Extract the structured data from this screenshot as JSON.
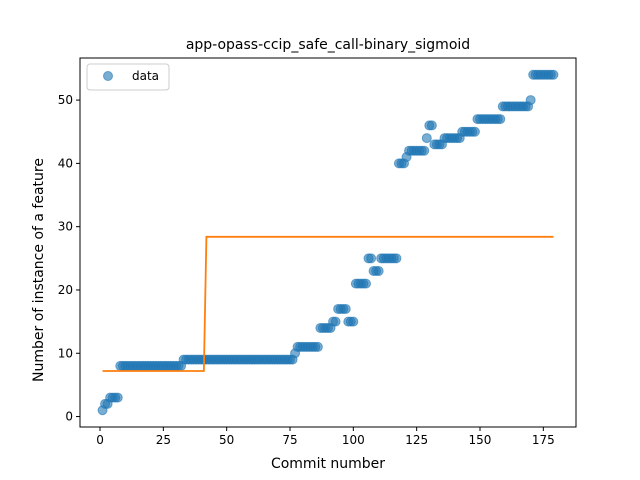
{
  "chart_data": {
    "type": "scatter",
    "title": "app-opass-ccip_safe_call-binary_sigmoid",
    "xlabel": "Commit number",
    "ylabel": "Number of instance of a feature",
    "xlim": [
      -7.9,
      187.9
    ],
    "ylim": [
      -1.65,
      56.65
    ],
    "xticks": [
      0,
      25,
      50,
      75,
      100,
      125,
      150,
      175
    ],
    "yticks": [
      0,
      10,
      20,
      30,
      40,
      50
    ],
    "grid": false,
    "legend_position": "top-left",
    "colors": {
      "data": "#1f77b4",
      "fit": "#ff7f0e"
    },
    "series": [
      {
        "name": "data",
        "kind": "scatter",
        "points": [
          [
            1,
            1
          ],
          [
            2,
            2
          ],
          [
            3,
            2
          ],
          [
            4,
            3
          ],
          [
            5,
            3
          ],
          [
            6,
            3
          ],
          [
            7,
            3
          ],
          [
            8,
            8
          ],
          [
            9,
            8
          ],
          [
            10,
            8
          ],
          [
            11,
            8
          ],
          [
            12,
            8
          ],
          [
            13,
            8
          ],
          [
            14,
            8
          ],
          [
            15,
            8
          ],
          [
            16,
            8
          ],
          [
            17,
            8
          ],
          [
            18,
            8
          ],
          [
            19,
            8
          ],
          [
            20,
            8
          ],
          [
            21,
            8
          ],
          [
            22,
            8
          ],
          [
            23,
            8
          ],
          [
            24,
            8
          ],
          [
            25,
            8
          ],
          [
            26,
            8
          ],
          [
            27,
            8
          ],
          [
            28,
            8
          ],
          [
            29,
            8
          ],
          [
            30,
            8
          ],
          [
            31,
            8
          ],
          [
            32,
            8
          ],
          [
            33,
            9
          ],
          [
            34,
            9
          ],
          [
            35,
            9
          ],
          [
            36,
            9
          ],
          [
            37,
            9
          ],
          [
            38,
            9
          ],
          [
            39,
            9
          ],
          [
            40,
            9
          ],
          [
            41,
            9
          ],
          [
            42,
            9
          ],
          [
            43,
            9
          ],
          [
            44,
            9
          ],
          [
            45,
            9
          ],
          [
            46,
            9
          ],
          [
            47,
            9
          ],
          [
            48,
            9
          ],
          [
            49,
            9
          ],
          [
            50,
            9
          ],
          [
            51,
            9
          ],
          [
            52,
            9
          ],
          [
            53,
            9
          ],
          [
            54,
            9
          ],
          [
            55,
            9
          ],
          [
            56,
            9
          ],
          [
            57,
            9
          ],
          [
            58,
            9
          ],
          [
            59,
            9
          ],
          [
            60,
            9
          ],
          [
            61,
            9
          ],
          [
            62,
            9
          ],
          [
            63,
            9
          ],
          [
            64,
            9
          ],
          [
            65,
            9
          ],
          [
            66,
            9
          ],
          [
            67,
            9
          ],
          [
            68,
            9
          ],
          [
            69,
            9
          ],
          [
            70,
            9
          ],
          [
            71,
            9
          ],
          [
            72,
            9
          ],
          [
            73,
            9
          ],
          [
            74,
            9
          ],
          [
            75,
            9
          ],
          [
            76,
            9
          ],
          [
            77,
            10
          ],
          [
            78,
            11
          ],
          [
            79,
            11
          ],
          [
            80,
            11
          ],
          [
            81,
            11
          ],
          [
            82,
            11
          ],
          [
            83,
            11
          ],
          [
            84,
            11
          ],
          [
            85,
            11
          ],
          [
            86,
            11
          ],
          [
            87,
            14
          ],
          [
            88,
            14
          ],
          [
            89,
            14
          ],
          [
            90,
            14
          ],
          [
            91,
            14
          ],
          [
            92,
            15
          ],
          [
            93,
            15
          ],
          [
            94,
            17
          ],
          [
            95,
            17
          ],
          [
            96,
            17
          ],
          [
            97,
            17
          ],
          [
            98,
            15
          ],
          [
            99,
            15
          ],
          [
            100,
            15
          ],
          [
            101,
            21
          ],
          [
            102,
            21
          ],
          [
            103,
            21
          ],
          [
            104,
            21
          ],
          [
            105,
            21
          ],
          [
            106,
            25
          ],
          [
            107,
            25
          ],
          [
            108,
            23
          ],
          [
            109,
            23
          ],
          [
            110,
            23
          ],
          [
            111,
            25
          ],
          [
            112,
            25
          ],
          [
            113,
            25
          ],
          [
            114,
            25
          ],
          [
            115,
            25
          ],
          [
            116,
            25
          ],
          [
            117,
            25
          ],
          [
            118,
            40
          ],
          [
            119,
            40
          ],
          [
            120,
            40
          ],
          [
            121,
            41
          ],
          [
            122,
            42
          ],
          [
            123,
            42
          ],
          [
            124,
            42
          ],
          [
            125,
            42
          ],
          [
            126,
            42
          ],
          [
            127,
            42
          ],
          [
            128,
            42
          ],
          [
            129,
            44
          ],
          [
            130,
            46
          ],
          [
            131,
            46
          ],
          [
            132,
            43
          ],
          [
            133,
            43
          ],
          [
            134,
            43
          ],
          [
            135,
            43
          ],
          [
            136,
            44
          ],
          [
            137,
            44
          ],
          [
            138,
            44
          ],
          [
            139,
            44
          ],
          [
            140,
            44
          ],
          [
            141,
            44
          ],
          [
            142,
            44
          ],
          [
            143,
            45
          ],
          [
            144,
            45
          ],
          [
            145,
            45
          ],
          [
            146,
            45
          ],
          [
            147,
            45
          ],
          [
            148,
            45
          ],
          [
            149,
            47
          ],
          [
            150,
            47
          ],
          [
            151,
            47
          ],
          [
            152,
            47
          ],
          [
            153,
            47
          ],
          [
            154,
            47
          ],
          [
            155,
            47
          ],
          [
            156,
            47
          ],
          [
            157,
            47
          ],
          [
            158,
            47
          ],
          [
            159,
            49
          ],
          [
            160,
            49
          ],
          [
            161,
            49
          ],
          [
            162,
            49
          ],
          [
            163,
            49
          ],
          [
            164,
            49
          ],
          [
            165,
            49
          ],
          [
            166,
            49
          ],
          [
            167,
            49
          ],
          [
            168,
            49
          ],
          [
            169,
            49
          ],
          [
            170,
            50
          ],
          [
            171,
            54
          ],
          [
            172,
            54
          ],
          [
            173,
            54
          ],
          [
            174,
            54
          ],
          [
            175,
            54
          ],
          [
            176,
            54
          ],
          [
            177,
            54
          ],
          [
            178,
            54
          ],
          [
            179,
            54
          ]
        ]
      },
      {
        "name": "",
        "kind": "line",
        "points": [
          [
            1,
            7.2
          ],
          [
            41,
            7.2
          ],
          [
            42,
            28.4
          ],
          [
            179,
            28.4
          ]
        ]
      }
    ]
  }
}
